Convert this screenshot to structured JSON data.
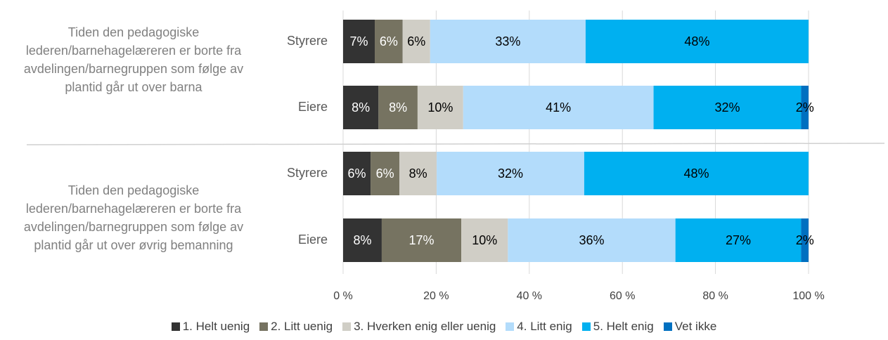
{
  "chart_data": {
    "type": "stacked_bar_horizontal",
    "groups": [
      {
        "label": "Tiden den pedagogiske lederen/barnehagelæreren er borte fra avdelingen/barnegruppen som følge av plantid går ut over barna"
      },
      {
        "label": "Tiden den pedagogiske lederen/barnehagelæreren er borte fra avdelingen/barnegruppen som følge av plantid går ut over øvrig bemanning"
      }
    ],
    "categories": [
      "Styrere",
      "Eiere",
      "Styrere",
      "Eiere"
    ],
    "series": [
      {
        "name": "1. Helt uenig",
        "color": "#333333",
        "values": [
          6.8,
          7.6,
          5.9,
          8.3
        ],
        "value_labels": [
          "7%",
          "8%",
          "6%",
          "8%"
        ]
      },
      {
        "name": "2. Litt uenig",
        "color": "#767361",
        "values": [
          6.0,
          8.4,
          6.2,
          17.1
        ],
        "value_labels": [
          "6%",
          "8%",
          "6%",
          "17%"
        ]
      },
      {
        "name": "3. Hverken enig eller uenig",
        "color": "#d0cec6",
        "values": [
          5.9,
          9.8,
          8.0,
          10.0
        ],
        "value_labels": [
          "6%",
          "10%",
          "8%",
          "10%"
        ]
      },
      {
        "name": "4. Litt enig",
        "color": "#b3dcfb",
        "values": [
          33.4,
          40.9,
          31.7,
          36.0
        ],
        "value_labels": [
          "33%",
          "41%",
          "32%",
          "36%"
        ]
      },
      {
        "name": "5. Helt enig",
        "color": "#00b0f0",
        "values": [
          47.9,
          31.7,
          48.2,
          27.0
        ],
        "value_labels": [
          "48%",
          "32%",
          "48%",
          "27%"
        ]
      },
      {
        "name": "Vet ikke",
        "color": "#0070c0",
        "values": [
          null,
          1.6,
          null,
          1.6
        ],
        "value_labels": [
          null,
          "2%",
          null,
          "2%"
        ]
      }
    ],
    "xlim": [
      0,
      100
    ],
    "xticks": [
      {
        "value": 0,
        "label": "0 %"
      },
      {
        "value": 20,
        "label": "20 %"
      },
      {
        "value": 40,
        "label": "40 %"
      },
      {
        "value": 60,
        "label": "60 %"
      },
      {
        "value": 80,
        "label": "80 %"
      },
      {
        "value": 100,
        "label": "100 %"
      }
    ],
    "grid": true
  }
}
